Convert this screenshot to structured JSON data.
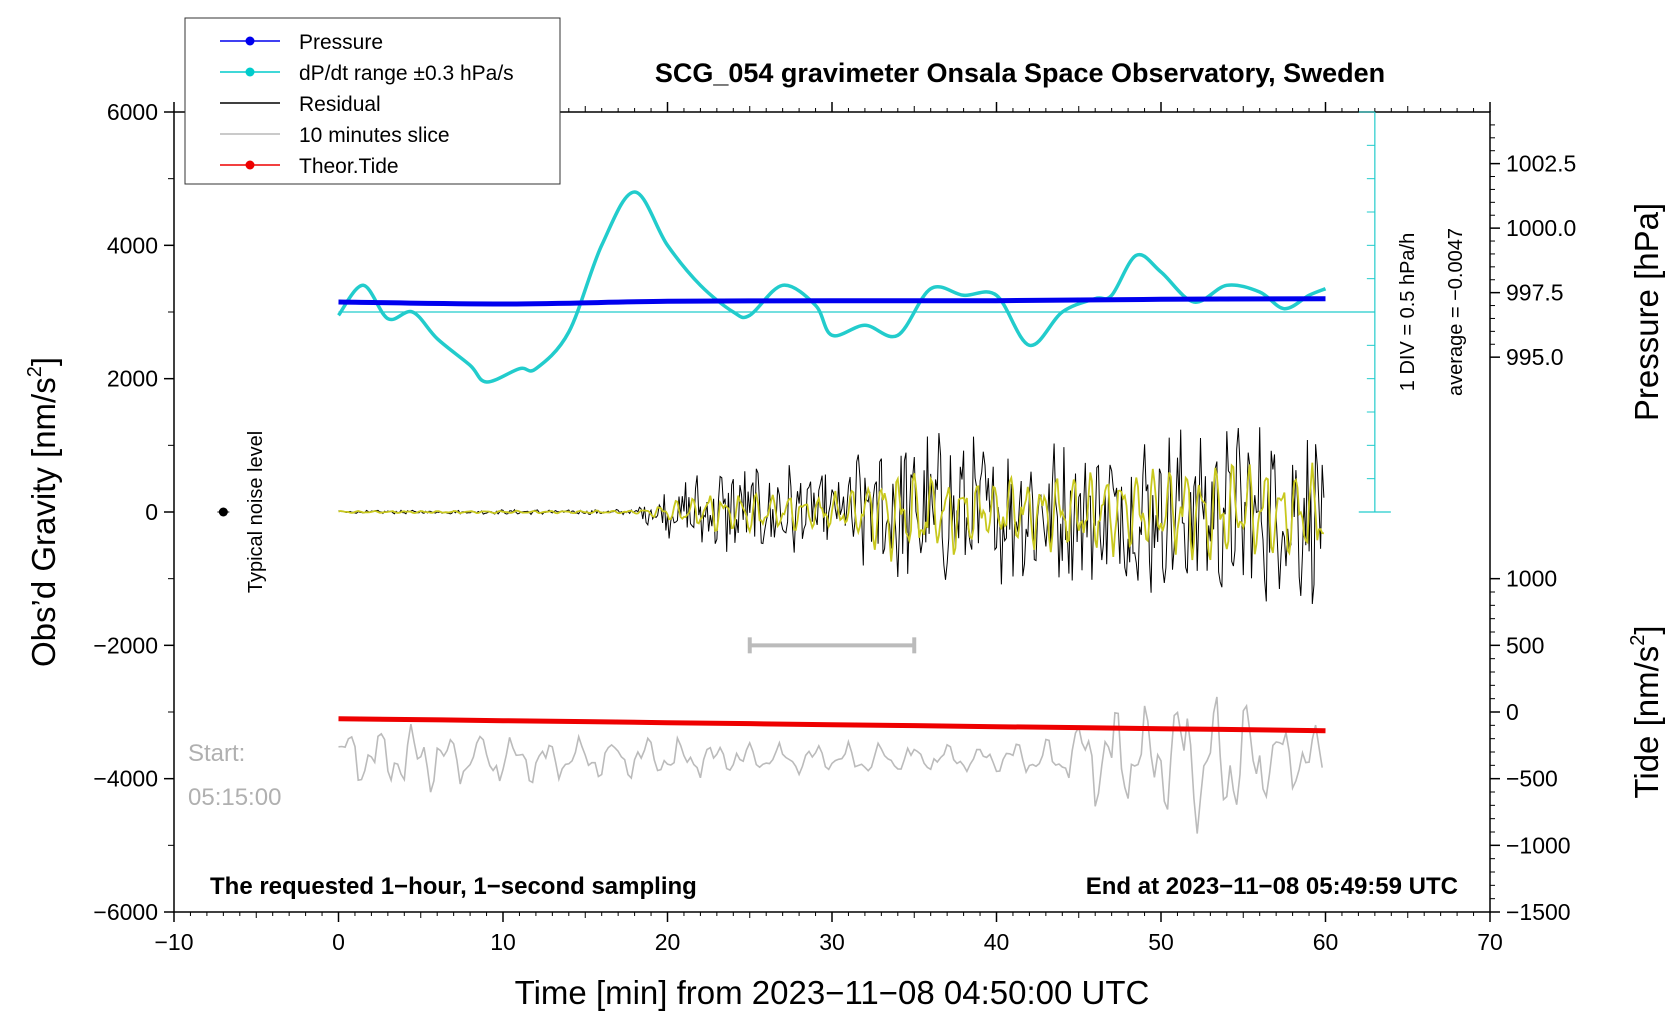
{
  "chart_data": {
    "type": "line",
    "title": "SCG_054 gravimeter Onsala Space Observatory, Sweden",
    "xlabel": "Time [min] from 2023−11−08 04:50:00 UTC",
    "ylabel_left": "Obs’d Gravity [nm/s²]",
    "ylabel_left_main": "Obs’d Gravity [nm/s",
    "ylabel_left_sup": "2",
    "ylabel_left_close": "]",
    "ylabel_right_pressure": "Pressure [hPa]",
    "ylabel_right_tide_main": "Tide [nm/s",
    "ylabel_right_tide_sup": "2",
    "ylabel_right_tide_close": "]",
    "xlim": [
      -10,
      70
    ],
    "ylim": [
      -6000,
      6000
    ],
    "xticks": [
      "−10",
      "0",
      "10",
      "20",
      "30",
      "40",
      "50",
      "60",
      "70"
    ],
    "xtick_values": [
      -10,
      0,
      10,
      20,
      30,
      40,
      50,
      60,
      70
    ],
    "yticks_left": [
      "−6000",
      "−4000",
      "−2000",
      "0",
      "2000",
      "4000",
      "6000"
    ],
    "ytick_left_values": [
      -6000,
      -4000,
      -2000,
      0,
      2000,
      4000,
      6000
    ],
    "pressure_axis": {
      "range": [
        989,
        1004.5
      ],
      "ticks": [
        "995.0",
        "997.5",
        "1000.0",
        "1002.5"
      ],
      "tick_values": [
        995.0,
        997.5,
        1000.0,
        1002.5
      ]
    },
    "tide_axis": {
      "range": [
        -1500,
        1000
      ],
      "ticks": [
        "−1500",
        "−1000",
        "−500",
        "0",
        "500",
        "1000"
      ],
      "tick_values": [
        -1500,
        -1000,
        -500,
        0,
        500,
        1000
      ]
    },
    "legend": [
      {
        "label": "Pressure",
        "color": "#0000ee",
        "marker": true
      },
      {
        "label": "dP/dt range ±0.3 hPa/s",
        "color": "#00cccc",
        "marker": true
      },
      {
        "label": "Residual",
        "color": "#000000",
        "marker": false
      },
      {
        "label": "10 minutes slice",
        "color": "#b8b8b8",
        "marker": false
      },
      {
        "label": "Theor.Tide",
        "color": "#ee0000",
        "marker": true
      }
    ],
    "series": [
      {
        "name": "Pressure",
        "color": "#0000ee",
        "axis": "left",
        "x": [
          0,
          10,
          20,
          30,
          40,
          50,
          60
        ],
        "y": [
          3150,
          3120,
          3160,
          3170,
          3170,
          3190,
          3200
        ]
      },
      {
        "name": "dP/dt",
        "color": "#22cccc",
        "axis": "left",
        "x": [
          0,
          1.5,
          3,
          4.5,
          6,
          8,
          9,
          11,
          12,
          14,
          16,
          18,
          20,
          22,
          24,
          25,
          27,
          29,
          30,
          32,
          34,
          36,
          38,
          40,
          42,
          44,
          46,
          47,
          48.5,
          50,
          52,
          54,
          56,
          57.5,
          59,
          60
        ],
        "y": [
          2950,
          3400,
          2900,
          3000,
          2600,
          2200,
          1950,
          2150,
          2150,
          2700,
          4000,
          4800,
          4000,
          3400,
          3000,
          2950,
          3400,
          3100,
          2650,
          2800,
          2650,
          3350,
          3250,
          3250,
          2500,
          3000,
          3200,
          3250,
          3850,
          3600,
          3150,
          3400,
          3300,
          3050,
          3250,
          3350
        ]
      },
      {
        "name": "Residual",
        "color": "#000000",
        "axis": "left",
        "envelope": {
          "x": [
            0,
            18,
            19,
            22,
            25,
            30,
            32,
            34,
            36,
            40,
            45,
            50,
            55,
            60
          ],
          "amp": [
            25,
            40,
            250,
            600,
            800,
            600,
            1000,
            1300,
            1150,
            1050,
            1050,
            1250,
            1300,
            1300
          ]
        }
      },
      {
        "name": "Residual filtered",
        "color": "#c8c81e",
        "axis": "left",
        "envelope": {
          "x": [
            0,
            18,
            20,
            22,
            25,
            30,
            32,
            34,
            40,
            45,
            50,
            55,
            60
          ],
          "amp": [
            15,
            20,
            120,
            250,
            300,
            250,
            400,
            700,
            450,
            550,
            650,
            700,
            650
          ]
        }
      },
      {
        "name": "10 minutes slice",
        "color": "#bbbbbb",
        "axis": "left",
        "baseline": -3700,
        "envelope": {
          "x": [
            0,
            5,
            10,
            20,
            30,
            40,
            44,
            46,
            50,
            53,
            56,
            58,
            60
          ],
          "amp": [
            500,
            600,
            400,
            350,
            250,
            250,
            300,
            850,
            900,
            1300,
            850,
            600,
            450
          ]
        }
      },
      {
        "name": "Theor.Tide",
        "color": "#ee0000",
        "axis": "left",
        "x": [
          0,
          10,
          20,
          30,
          40,
          50,
          60
        ],
        "y": [
          -3100,
          -3130,
          -3160,
          -3190,
          -3220,
          -3250,
          -3280
        ]
      }
    ],
    "annotations": {
      "noise_label": "Typical noise level",
      "noise_point": {
        "x": -7,
        "y": 0
      },
      "slice_bar": {
        "x0": 25,
        "x1": 35,
        "y": -2000
      },
      "pressure_scale_1": "1 DIV = 0.5 hPa/h",
      "pressure_scale_2": "average = −0.0047",
      "pressure_ref_y": 3000,
      "start_label": "Start:",
      "start_time": "05:15:00",
      "bottom_left": "The requested 1−hour, 1−second sampling",
      "bottom_right": "End at 2023−11−08 05:49:59 UTC"
    }
  }
}
